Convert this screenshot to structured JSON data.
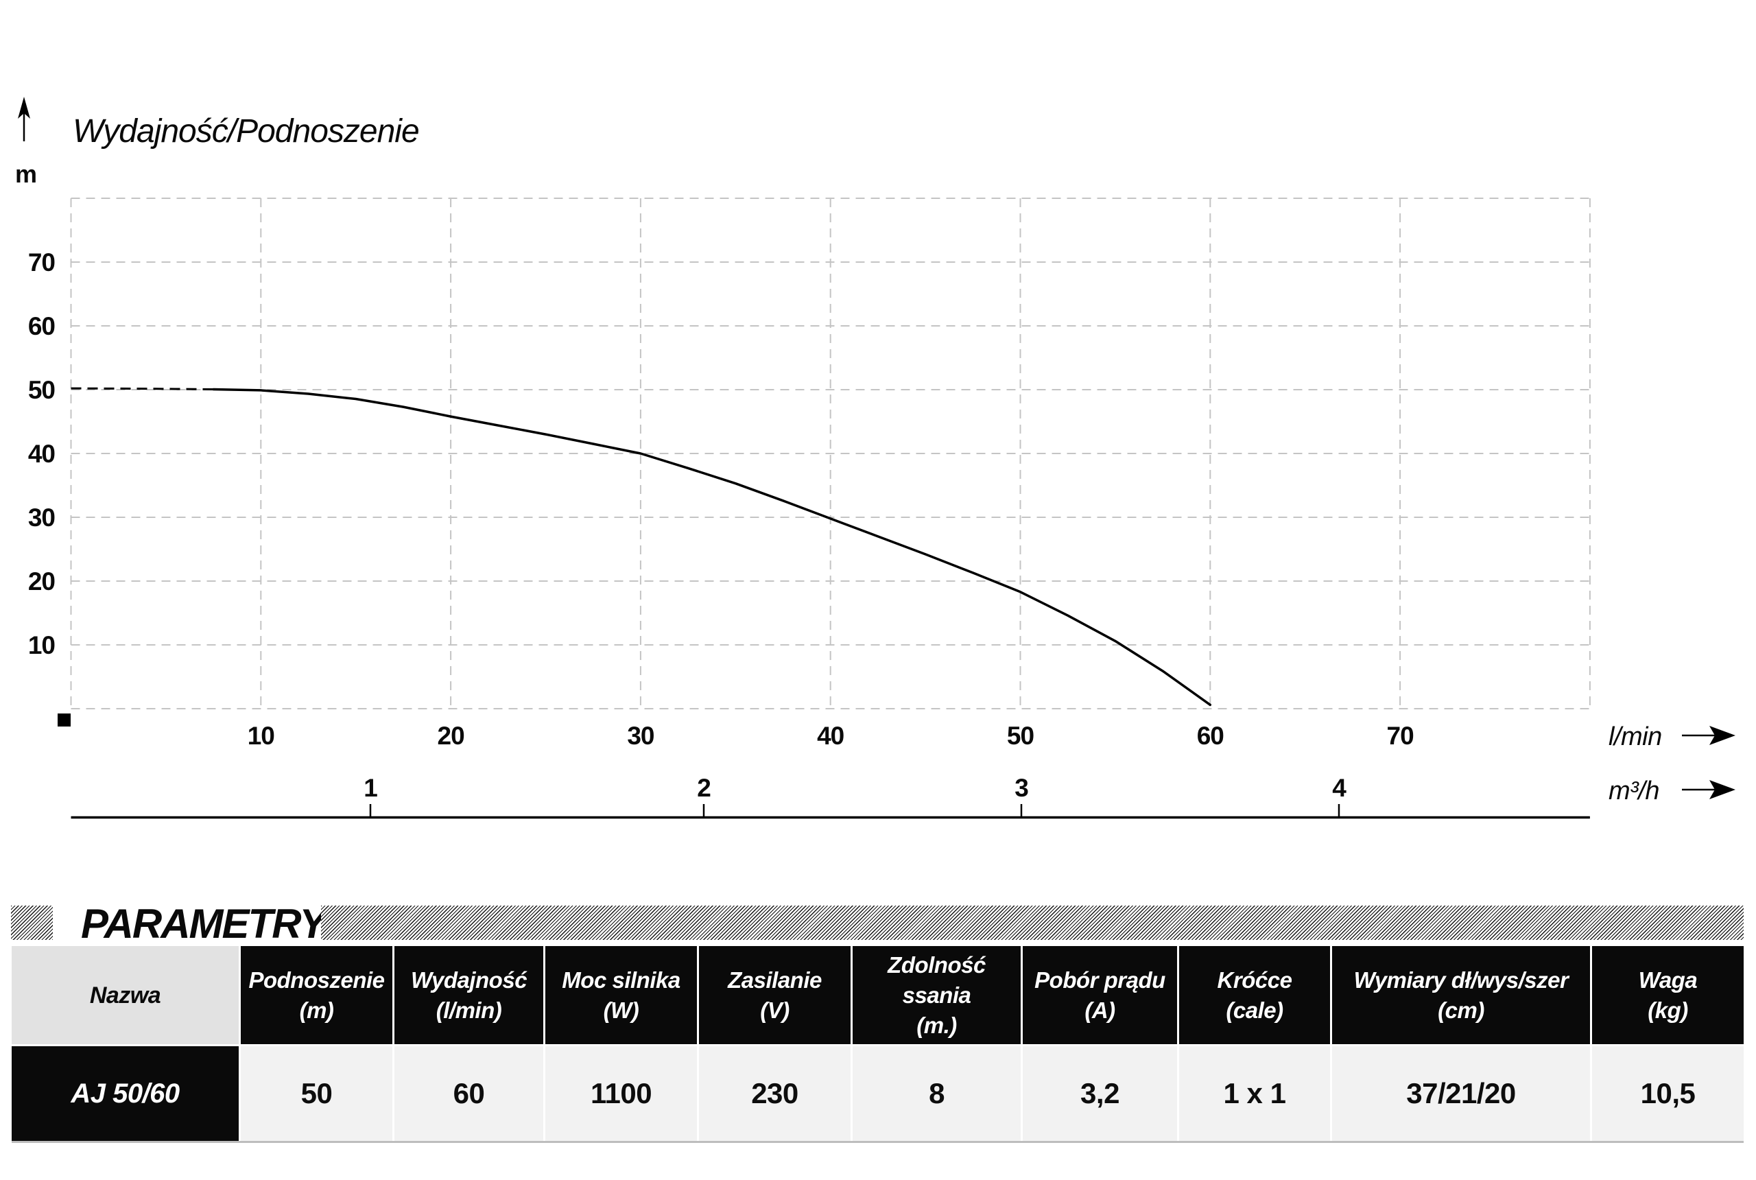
{
  "chart_data": {
    "type": "line",
    "title": "Wydajność/Podnoszenie",
    "ylabel": "m",
    "xlabel": "l/min",
    "x2label": "m³/h",
    "xlim": [
      0,
      80
    ],
    "ylim": [
      0,
      80
    ],
    "grid": "dashed",
    "x_ticks": [
      "10",
      "20",
      "30",
      "40",
      "50",
      "60",
      "70"
    ],
    "y_ticks": [
      "70",
      "60",
      "50",
      "40",
      "30",
      "20",
      "10"
    ],
    "x2_ticks": [
      "1",
      "2",
      "3",
      "4"
    ],
    "x2_conversion": "1 m³/h = 16.667 l/min",
    "series": [
      {
        "name": "pump-curve-dashed-start",
        "style": "dashed",
        "points": [
          [
            0,
            50.2
          ],
          [
            4,
            50.15
          ],
          [
            7.5,
            50.05
          ]
        ]
      },
      {
        "name": "pump-curve",
        "style": "solid",
        "points": [
          [
            7.5,
            50.05
          ],
          [
            10,
            49.9
          ],
          [
            12.5,
            49.35
          ],
          [
            15,
            48.55
          ],
          [
            17.5,
            47.3
          ],
          [
            20,
            45.8
          ],
          [
            22.5,
            44.4
          ],
          [
            25,
            43.0
          ],
          [
            27.5,
            41.5
          ],
          [
            30,
            40.0
          ],
          [
            32.5,
            37.7
          ],
          [
            35,
            35.3
          ],
          [
            37.5,
            32.6
          ],
          [
            40,
            29.8
          ],
          [
            42.5,
            27.0
          ],
          [
            45,
            24.2
          ],
          [
            47.5,
            21.3
          ],
          [
            50,
            18.3
          ],
          [
            52.5,
            14.6
          ],
          [
            55,
            10.6
          ],
          [
            57.5,
            5.9
          ],
          [
            60,
            0.6
          ]
        ]
      }
    ]
  },
  "parameters": {
    "section_title": "PARAMETRY",
    "columns": [
      {
        "label": "Nazwa",
        "unit": ""
      },
      {
        "label": "Podnoszenie",
        "unit": "(m)"
      },
      {
        "label": "Wydajność",
        "unit": "(l/min)"
      },
      {
        "label": "Moc silnika",
        "unit": "(W)"
      },
      {
        "label": "Zasilanie",
        "unit": "(V)"
      },
      {
        "label": "Zdolność ssania",
        "unit": "(m.)"
      },
      {
        "label": "Pobór prądu",
        "unit": "(A)"
      },
      {
        "label": "Króćce",
        "unit": "(cale)"
      },
      {
        "label": "Wymiary dł/wys/szer",
        "unit": "(cm)"
      },
      {
        "label": "Waga",
        "unit": "(kg)"
      }
    ],
    "row": {
      "name": "AJ 50/60",
      "values": [
        "50",
        "60",
        "1100",
        "230",
        "8",
        "3,2",
        "1 x 1",
        "37/21/20",
        "10,5"
      ]
    }
  }
}
